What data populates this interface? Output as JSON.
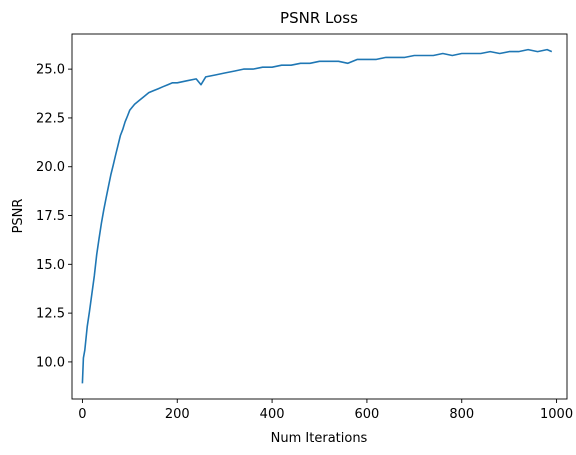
{
  "chart_data": {
    "type": "line",
    "title": "PSNR Loss",
    "xlabel": "Num Iterations",
    "ylabel": "PSNR",
    "xlim": [
      -22,
      1022
    ],
    "ylim": [
      8.1,
      26.8
    ],
    "xticks": [
      0,
      200,
      400,
      600,
      800,
      1000
    ],
    "xtick_labels": [
      "0",
      "200",
      "400",
      "600",
      "800",
      "1000"
    ],
    "yticks": [
      10.0,
      12.5,
      15.0,
      17.5,
      20.0,
      22.5,
      25.0
    ],
    "ytick_labels": [
      "10.0",
      "12.5",
      "15.0",
      "17.5",
      "20.0",
      "22.5",
      "25.0"
    ],
    "grid": false,
    "legend": "none",
    "series": [
      {
        "color": "#1f77b4",
        "x": [
          0,
          2,
          5,
          10,
          15,
          20,
          25,
          30,
          35,
          40,
          45,
          50,
          55,
          60,
          65,
          70,
          75,
          80,
          85,
          90,
          95,
          100,
          110,
          120,
          130,
          140,
          150,
          160,
          170,
          180,
          190,
          200,
          220,
          240,
          250,
          260,
          280,
          300,
          320,
          340,
          360,
          380,
          400,
          420,
          440,
          460,
          480,
          500,
          520,
          540,
          560,
          580,
          600,
          620,
          640,
          660,
          680,
          700,
          720,
          740,
          760,
          780,
          800,
          820,
          840,
          860,
          880,
          900,
          920,
          940,
          960,
          980,
          990
        ],
        "y": [
          8.9,
          10.2,
          10.6,
          11.8,
          12.6,
          13.5,
          14.4,
          15.5,
          16.3,
          17.1,
          17.8,
          18.4,
          19.0,
          19.6,
          20.1,
          20.6,
          21.1,
          21.6,
          21.9,
          22.3,
          22.6,
          22.9,
          23.2,
          23.4,
          23.6,
          23.8,
          23.9,
          24.0,
          24.1,
          24.2,
          24.3,
          24.3,
          24.4,
          24.5,
          24.2,
          24.6,
          24.7,
          24.8,
          24.9,
          25.0,
          25.0,
          25.1,
          25.1,
          25.2,
          25.2,
          25.3,
          25.3,
          25.4,
          25.4,
          25.4,
          25.3,
          25.5,
          25.5,
          25.5,
          25.6,
          25.6,
          25.6,
          25.7,
          25.7,
          25.7,
          25.8,
          25.7,
          25.8,
          25.8,
          25.8,
          25.9,
          25.8,
          25.9,
          25.9,
          26.0,
          25.9,
          26.0,
          25.9
        ]
      }
    ]
  }
}
